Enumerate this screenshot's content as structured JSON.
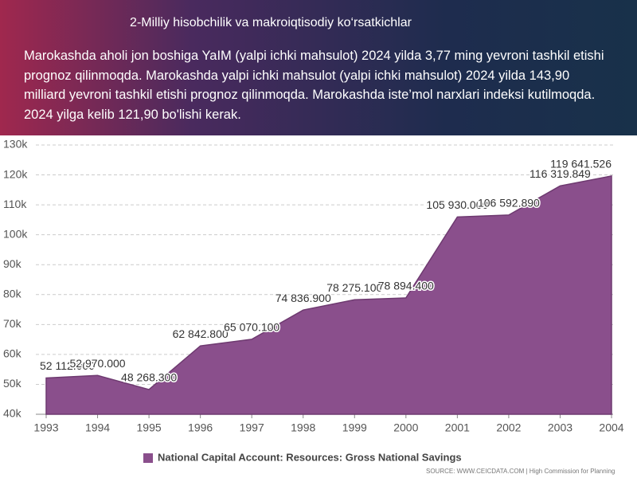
{
  "header": {
    "title": "2-Milliy hisobchilik va makroiqtisodiy ko‘rsatkichlar",
    "text": "Marokashda aholi jon boshiga YaIM (yalpi ichki mahsulot) 2024 yilda 3,77 ming yevroni tashkil etishi prognoz qilinmoqda. Marokashda yalpi ichki mahsulot (yalpi ichki mahsulot) 2024 yilda 143,90 milliard yevroni tashkil etishi prognoz qilinmoqda. Marokashda iste’mol narxlari indeksi kutilmoqda. 2024 yilga kelib 121,90 bo'lishi kerak."
  },
  "chart_data": {
    "type": "area",
    "x": [
      1993,
      1994,
      1995,
      1996,
      1997,
      1998,
      1999,
      2000,
      2001,
      2002,
      2003,
      2004
    ],
    "xlim": [
      1993,
      2004
    ],
    "xticks": [
      1993,
      1994,
      1995,
      1996,
      1997,
      1998,
      1999,
      2000,
      2001,
      2002,
      2003,
      2004
    ],
    "ylim": [
      40000,
      130000
    ],
    "yticks": [
      {
        "value": 40000,
        "label": "40k"
      },
      {
        "value": 50000,
        "label": "50k"
      },
      {
        "value": 60000,
        "label": "60k"
      },
      {
        "value": 70000,
        "label": "70k"
      },
      {
        "value": 80000,
        "label": "80k"
      },
      {
        "value": 90000,
        "label": "90k"
      },
      {
        "value": 100000,
        "label": "100k"
      },
      {
        "value": 110000,
        "label": "110k"
      },
      {
        "value": 120000,
        "label": "120k"
      },
      {
        "value": 130000,
        "label": "130k"
      }
    ],
    "grid": true,
    "series": [
      {
        "name": "National Capital Account: Resources: Gross National Savings",
        "color": "#8a4f8c",
        "values": [
          52112,
          52970,
          48268.3,
          62842.8,
          65070.1,
          74836.9,
          78275.1,
          78894.4,
          105930,
          106592.89,
          116319.849,
          119641.526
        ],
        "value_labels": [
          "52 112.000",
          "52 970.000",
          "48 268.300",
          "62 842.800",
          "65 070.100",
          "74 836.900",
          "78 275.100",
          "78 894.400",
          "105 930.000",
          "106 592.890",
          "116 319.849",
          "119 641.526"
        ]
      }
    ],
    "source": "SOURCE: WWW.CEICDATA.COM | High Commission for Planning"
  }
}
